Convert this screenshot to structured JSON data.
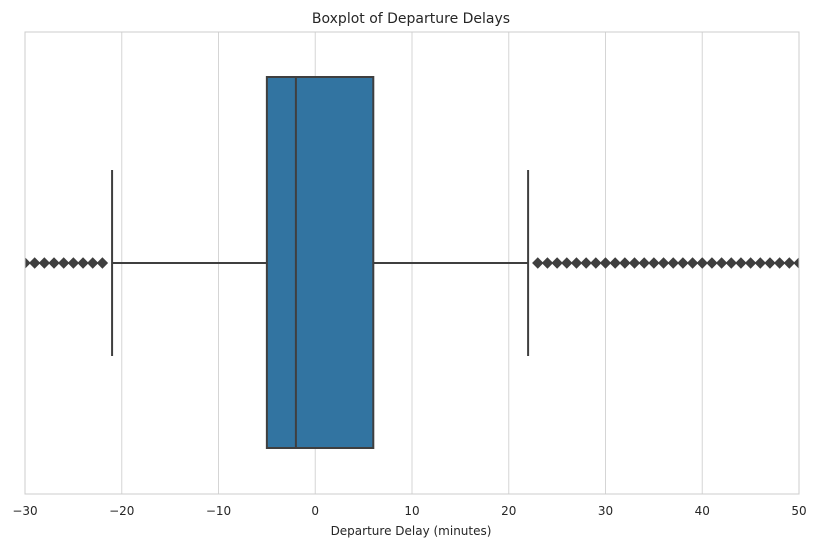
{
  "chart_data": {
    "type": "box",
    "title": "Boxplot of Departure Delays",
    "xlabel": "Departure Delay (minutes)",
    "ylabel": "",
    "xlim": [
      -30,
      50
    ],
    "xticks": [
      -30,
      -20,
      -10,
      0,
      10,
      20,
      30,
      40,
      50
    ],
    "xtick_labels": [
      "−30",
      "−20",
      "−10",
      "0",
      "10",
      "20",
      "30",
      "40",
      "50"
    ],
    "grid": true,
    "box": {
      "whisker_low": -21,
      "q1": -5,
      "median": -2,
      "q3": 6,
      "whisker_high": 22
    },
    "outliers": [
      -30,
      -29,
      -28,
      -27,
      -26,
      -25,
      -24,
      -23,
      -22,
      23,
      24,
      25,
      26,
      27,
      28,
      29,
      30,
      31,
      32,
      33,
      34,
      35,
      36,
      37,
      38,
      39,
      40,
      41,
      42,
      43,
      44,
      45,
      46,
      47,
      48,
      49,
      50
    ],
    "colors": {
      "box_fill": "#3274a1",
      "line": "#3f3f3f",
      "grid": "#d5d5d5",
      "frame": "#cccccc"
    }
  }
}
